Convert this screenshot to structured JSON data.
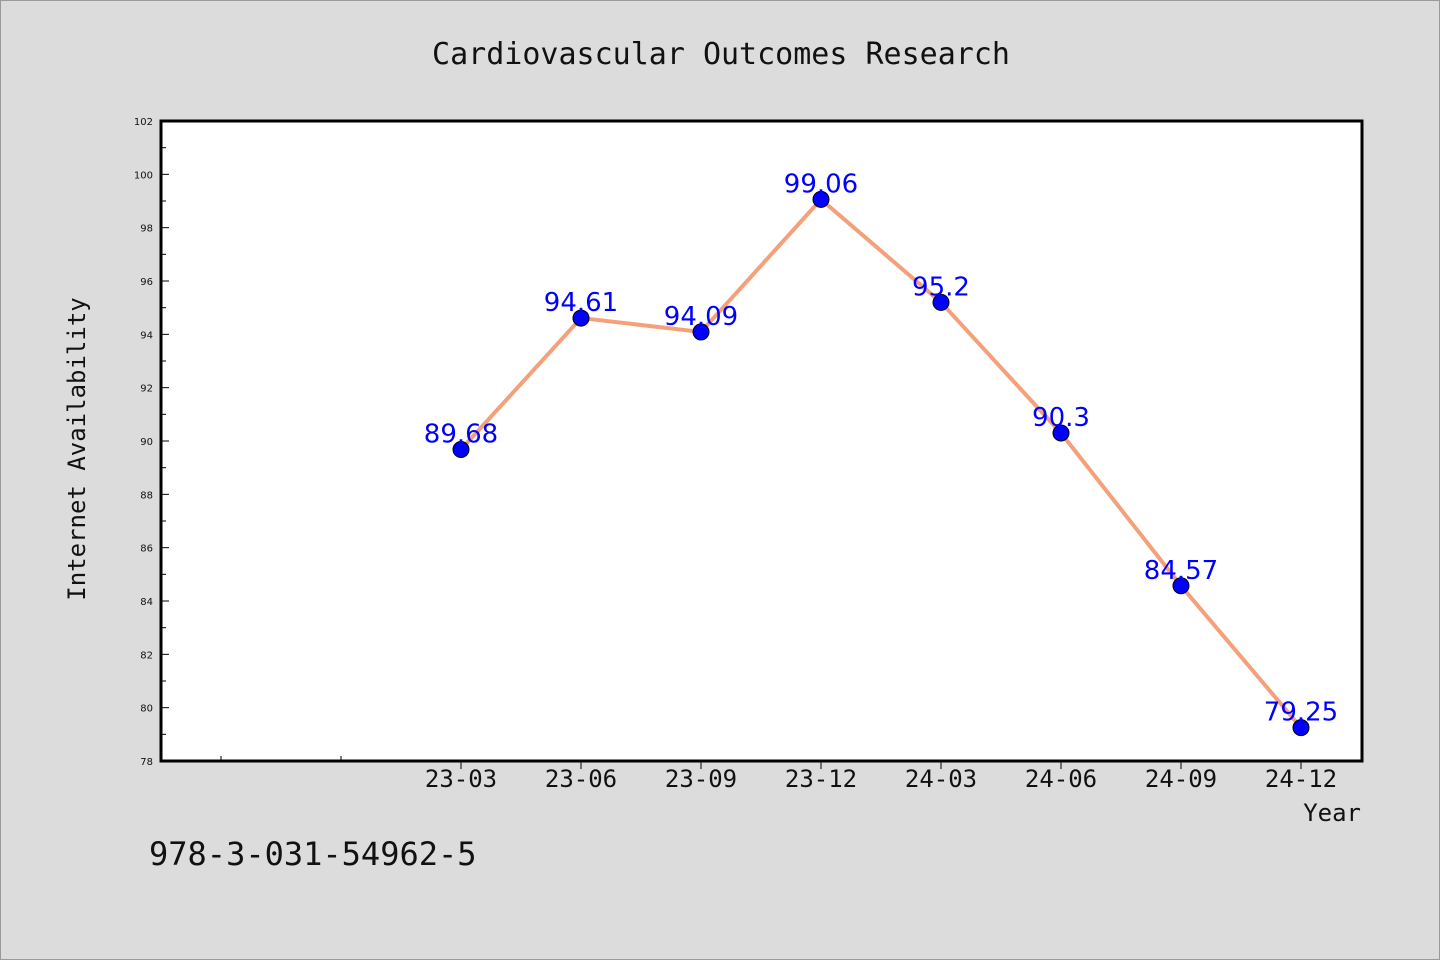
{
  "chart_data": {
    "type": "line",
    "title": "Cardiovascular Outcomes Research",
    "xlabel": "Year",
    "ylabel": "Internet Availability",
    "ylim": [
      78,
      102
    ],
    "yticks": [
      78,
      80,
      82,
      84,
      86,
      88,
      90,
      92,
      94,
      96,
      98,
      100,
      102
    ],
    "categories": [
      "23-03",
      "23-06",
      "23-09",
      "23-12",
      "24-03",
      "24-06",
      "24-09",
      "24-12"
    ],
    "series": [
      {
        "values": [
          89.68,
          94.61,
          94.09,
          99.06,
          95.2,
          90.3,
          84.57,
          79.25
        ],
        "labels": [
          "89.68",
          "94.61",
          "94.09",
          "99.06",
          "95.2",
          "90.3",
          "84.57",
          "79.25"
        ]
      }
    ],
    "line_color": "#f4a07a",
    "marker_color": "#0000ff",
    "data_label_color": "#0000ff",
    "grid": false,
    "legend": "none"
  },
  "footnote": "978-3-031-54962-5"
}
